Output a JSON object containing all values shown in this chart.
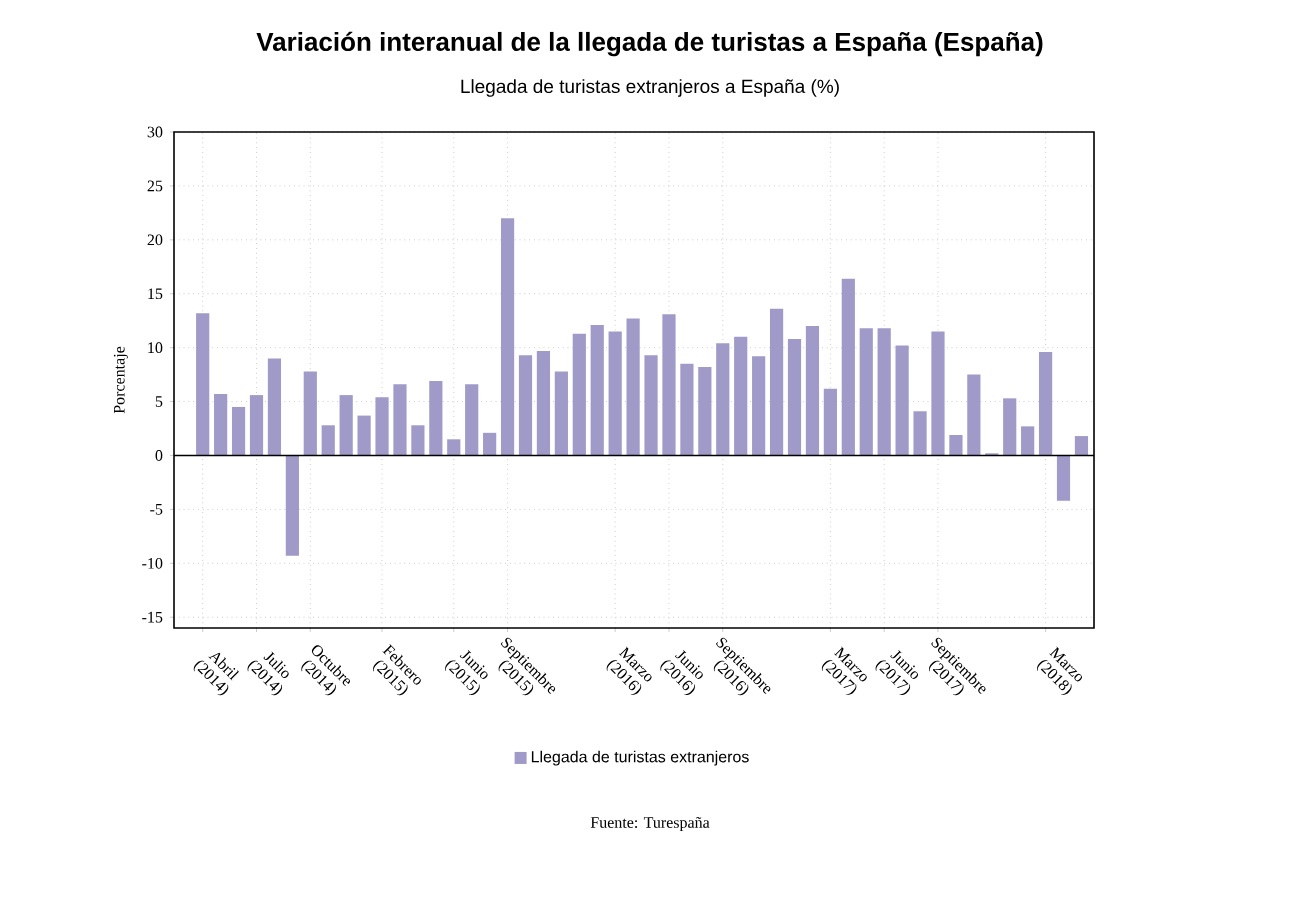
{
  "chart_data": {
    "type": "bar",
    "title": "Variación interanual de la llegada de turistas a España (España)",
    "subtitle": "Llegada de turistas extranjeros a España (%)",
    "ylabel": "Porcentaje",
    "categories": [
      "Abril (2014)",
      null,
      null,
      "Julio (2014)",
      null,
      null,
      "Octubre (2014)",
      null,
      null,
      null,
      "Febrero (2015)",
      null,
      null,
      null,
      "Junio (2015)",
      null,
      null,
      "Septiembre (2015)",
      null,
      null,
      null,
      null,
      null,
      "Marzo (2016)",
      null,
      null,
      "Junio (2016)",
      null,
      null,
      "Septiembre (2016)",
      null,
      null,
      null,
      null,
      null,
      "Marzo (2017)",
      null,
      null,
      "Junio (2017)",
      null,
      null,
      "Septiembre (2017)",
      null,
      null,
      null,
      null,
      null,
      "Marzo (2018)",
      null,
      null
    ],
    "series": [
      {
        "name": "Llegada de turistas extranjeros",
        "color": "#9f9ac8",
        "values": [
          13.2,
          5.7,
          4.5,
          5.6,
          9.0,
          -9.3,
          7.8,
          2.8,
          5.6,
          3.7,
          5.4,
          6.6,
          2.8,
          6.9,
          1.5,
          6.6,
          2.1,
          22.0,
          9.3,
          9.7,
          7.8,
          11.3,
          12.1,
          11.5,
          12.7,
          9.3,
          13.1,
          8.5,
          8.2,
          10.4,
          11.0,
          9.2,
          13.6,
          10.8,
          12.0,
          6.2,
          16.4,
          11.8,
          11.8,
          10.2,
          4.1,
          11.5,
          1.9,
          7.5,
          0.2,
          5.3,
          2.7,
          9.6,
          -4.2,
          1.8
        ]
      }
    ],
    "ylim": [
      -16,
      30
    ],
    "yticks": [
      -15,
      -10,
      -5,
      0,
      5,
      10,
      15,
      20,
      25,
      30
    ],
    "ref_lines": [
      {
        "axis": "y",
        "value": 0,
        "color": "#000000"
      }
    ],
    "grid": true,
    "legend": "bottom",
    "annotations": [
      "Fuente: Turespaña"
    ]
  }
}
